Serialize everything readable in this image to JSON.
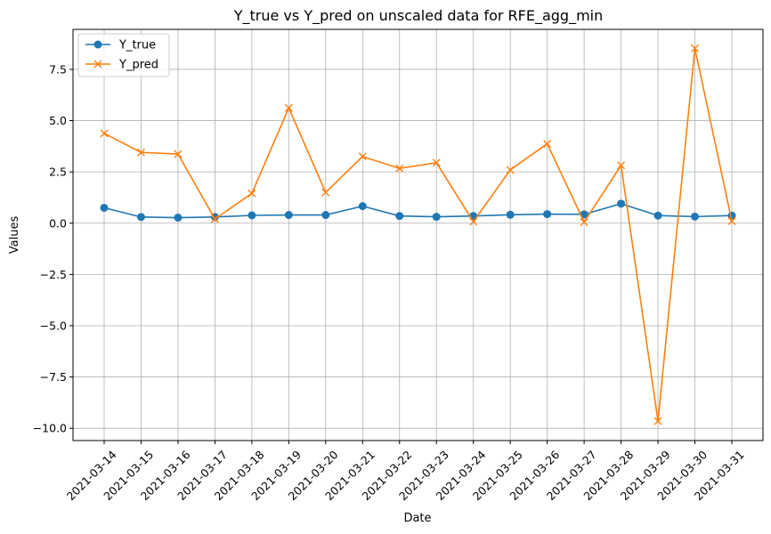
{
  "chart_data": {
    "type": "line",
    "title": "Y_true vs Y_pred on unscaled data for RFE_agg_min",
    "xlabel": "Date",
    "ylabel": "Values",
    "x": [
      "2021-03-14",
      "2021-03-15",
      "2021-03-16",
      "2021-03-17",
      "2021-03-18",
      "2021-03-19",
      "2021-03-20",
      "2021-03-21",
      "2021-03-22",
      "2021-03-23",
      "2021-03-24",
      "2021-03-25",
      "2021-03-26",
      "2021-03-27",
      "2021-03-28",
      "2021-03-29",
      "2021-03-30",
      "2021-03-31"
    ],
    "yticks": [
      -10.0,
      -7.5,
      -5.0,
      -2.5,
      0.0,
      2.5,
      5.0,
      7.5
    ],
    "ytick_labels": [
      "−10.0",
      "−7.5",
      "−5.0",
      "−2.5",
      "0.0",
      "2.5",
      "5.0",
      "7.5"
    ],
    "ylim": [
      -10.6,
      9.45
    ],
    "grid": true,
    "legend_position": "top-left",
    "series": [
      {
        "name": "Y_true",
        "color": "#1f77b4",
        "marker": "circle",
        "values": [
          0.75,
          0.3,
          0.27,
          0.3,
          0.38,
          0.4,
          0.4,
          0.83,
          0.35,
          0.31,
          0.35,
          0.41,
          0.44,
          0.43,
          0.95,
          0.37,
          0.32,
          0.37
        ]
      },
      {
        "name": "Y_pred",
        "color": "#ff7f0e",
        "marker": "x",
        "values": [
          4.38,
          3.45,
          3.37,
          0.2,
          1.45,
          5.62,
          1.5,
          3.25,
          2.67,
          2.95,
          0.07,
          2.6,
          3.87,
          0.05,
          2.82,
          -9.65,
          8.53,
          0.1
        ]
      }
    ]
  }
}
